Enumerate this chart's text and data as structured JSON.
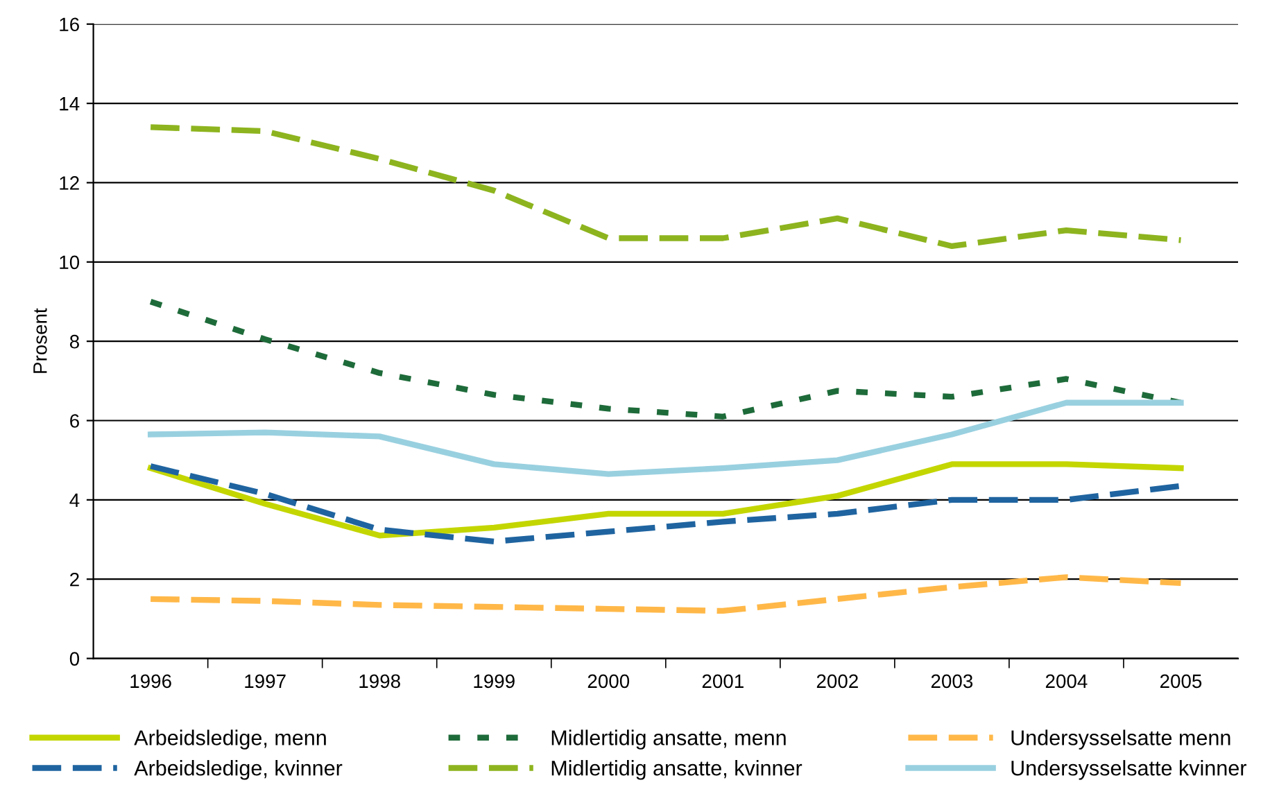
{
  "chart_data": {
    "type": "line",
    "ylabel": "Prosent",
    "categories": [
      "1996",
      "1997",
      "1998",
      "1999",
      "2000",
      "2001",
      "2002",
      "2003",
      "2004",
      "2005"
    ],
    "ylim": [
      0,
      16
    ],
    "yticks": [
      0,
      2,
      4,
      6,
      8,
      10,
      12,
      14,
      16
    ],
    "grid": "y",
    "legend": "bottom",
    "marker": "none",
    "series": [
      {
        "name": "Arbeidsledige, menn",
        "color": "#c3d600",
        "line_style": "solid",
        "values": [
          4.8,
          3.9,
          3.1,
          3.3,
          3.65,
          3.65,
          4.1,
          4.9,
          4.9,
          4.8
        ]
      },
      {
        "name": "Arbeidsledige, kvinner",
        "color": "#1f64a0",
        "line_style": "dashed",
        "values": [
          4.85,
          4.15,
          3.25,
          2.95,
          3.2,
          3.45,
          3.65,
          4.0,
          4.0,
          4.35
        ]
      },
      {
        "name": "Midlertidig ansatte, menn",
        "color": "#1e6b3a",
        "line_style": "dotted",
        "values": [
          9.0,
          8.05,
          7.2,
          6.65,
          6.3,
          6.1,
          6.75,
          6.6,
          7.05,
          6.45
        ]
      },
      {
        "name": "Midlertidig ansatte, kvinner",
        "color": "#8db41e",
        "line_style": "dashed",
        "values": [
          13.4,
          13.3,
          12.6,
          11.8,
          10.6,
          10.6,
          11.1,
          10.4,
          10.8,
          10.55
        ]
      },
      {
        "name": "Undersysselsatte menn",
        "color": "#ffb848",
        "line_style": "dashed",
        "values": [
          1.5,
          1.45,
          1.35,
          1.3,
          1.25,
          1.2,
          1.5,
          1.8,
          2.05,
          1.9
        ]
      },
      {
        "name": "Undersysselsatte kvinner",
        "color": "#99d0e0",
        "line_style": "solid",
        "values": [
          5.65,
          5.7,
          5.6,
          4.9,
          4.65,
          4.8,
          5.0,
          5.65,
          6.45,
          6.45
        ]
      }
    ]
  }
}
